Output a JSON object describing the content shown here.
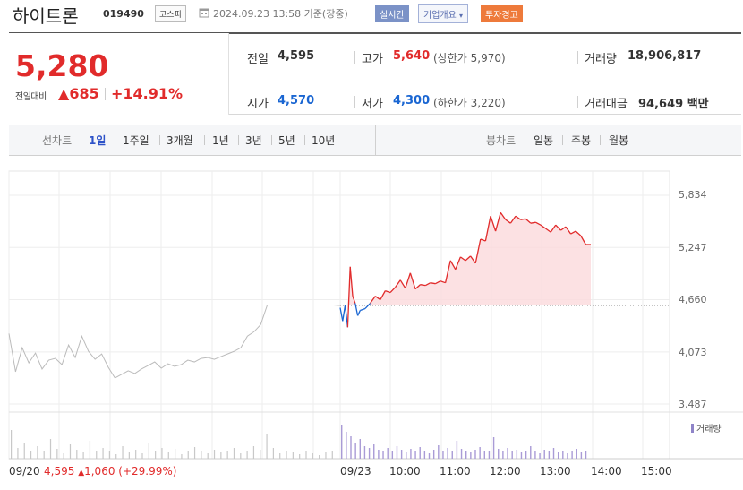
{
  "header": {
    "stock_name": "하이트론",
    "stock_code": "019490",
    "market": "코스피",
    "datetime": "2024.09.23 13:58 기준(장중)",
    "live_badge": "실시간",
    "company_badge": "기업개요",
    "warn_badge": "투자경고"
  },
  "summary": {
    "price": "5,280",
    "change_label": "전일대비",
    "change": "685",
    "change_pct": "+14.91%",
    "prev_close_label": "전일",
    "prev_close": "4,595",
    "open_label": "시가",
    "open": "4,570",
    "high_label": "고가",
    "high": "5,640",
    "upper_limit": "(상한가 5,970)",
    "low_label": "저가",
    "low": "4,300",
    "lower_limit": "(하한가 3,220)",
    "volume_label": "거래량",
    "volume": "18,906,817",
    "amount_label": "거래대금",
    "amount": "94,649",
    "amount_unit": "백만"
  },
  "periods": {
    "line_label": "선차트",
    "line_items": [
      "1일",
      "1주일",
      "3개월",
      "1년",
      "3년",
      "5년",
      "10년"
    ],
    "selected": "1일",
    "candle_label": "봉차트",
    "candle_items": [
      "일봉",
      "주봉",
      "월봉"
    ]
  },
  "colors": {
    "up": "#e12b2b",
    "down": "#1a66d2",
    "fill": "#fbd9dc",
    "prev_line": "#bbbbbb",
    "volume_prev": "#c8c8c8",
    "volume_today": "#a99bd6"
  },
  "chart_data": {
    "type": "line",
    "y_ticks": [
      "5,834",
      "5,247",
      "4,660",
      "4,073",
      "3,487"
    ],
    "ylim": [
      3487,
      5834
    ],
    "x_ticks": [
      "09/23",
      "10:00",
      "11:00",
      "12:00",
      "13:00",
      "14:00",
      "15:00"
    ],
    "prev_day_label": "09/20",
    "prev_day_info": {
      "close": "4,595",
      "change": "1,060",
      "pct": "(+29.99%)"
    },
    "volume_label": "거래량",
    "prev_close_ref": 4595,
    "series": [
      {
        "name": "09/20",
        "x": [
          0,
          0.02,
          0.04,
          0.06,
          0.08,
          0.1,
          0.12,
          0.14,
          0.16,
          0.18,
          0.2,
          0.22,
          0.24,
          0.26,
          0.28,
          0.3,
          0.32,
          0.34,
          0.36,
          0.38,
          0.4,
          0.42,
          0.44,
          0.46,
          0.48,
          0.5,
          0.52,
          0.54,
          0.56,
          0.58,
          0.6,
          0.62,
          0.64,
          0.66,
          0.68,
          0.7,
          0.72,
          0.74,
          0.76,
          0.78,
          0.8,
          0.82,
          0.84,
          0.86,
          0.88,
          0.9,
          0.92,
          0.94,
          0.96,
          0.98,
          1.0
        ],
        "values": [
          4280,
          3850,
          4120,
          3950,
          4060,
          3880,
          3980,
          4000,
          3930,
          4150,
          4010,
          4250,
          4080,
          3990,
          4050,
          3900,
          3780,
          3820,
          3860,
          3830,
          3880,
          3920,
          3960,
          3890,
          3940,
          3910,
          3930,
          3980,
          3960,
          4000,
          4010,
          3990,
          4020,
          4050,
          4080,
          4120,
          4250,
          4300,
          4380,
          4600,
          4600,
          4600,
          4600,
          4600,
          4600,
          4600,
          4600,
          4600,
          4600,
          4600,
          4595
        ]
      },
      {
        "name": "09/23",
        "x": [
          0,
          0.01,
          0.02,
          0.03,
          0.04,
          0.05,
          0.06,
          0.07,
          0.08,
          0.1,
          0.12,
          0.14,
          0.16,
          0.18,
          0.2,
          0.22,
          0.24,
          0.26,
          0.28,
          0.3,
          0.32,
          0.34,
          0.36,
          0.38,
          0.4,
          0.42,
          0.44,
          0.46,
          0.48,
          0.5,
          0.52,
          0.54,
          0.56,
          0.58,
          0.6,
          0.62,
          0.64,
          0.66,
          0.68,
          0.7,
          0.72,
          0.74,
          0.76,
          0.78,
          0.8,
          0.82,
          0.84,
          0.86,
          0.88,
          0.9,
          0.92,
          0.94,
          0.96,
          0.98,
          1.0
        ],
        "values": [
          4570,
          4420,
          4600,
          4350,
          5030,
          4700,
          4620,
          4480,
          4540,
          4560,
          4620,
          4700,
          4660,
          4760,
          4740,
          4800,
          4880,
          4790,
          4960,
          4780,
          4830,
          4820,
          4850,
          4840,
          4870,
          4850,
          5100,
          5000,
          5140,
          5100,
          5150,
          5070,
          5340,
          5320,
          5600,
          5430,
          5640,
          5560,
          5520,
          5600,
          5560,
          5570,
          5520,
          5530,
          5500,
          5460,
          5420,
          5500,
          5440,
          5480,
          5400,
          5430,
          5380,
          5280,
          5280
        ]
      }
    ]
  }
}
